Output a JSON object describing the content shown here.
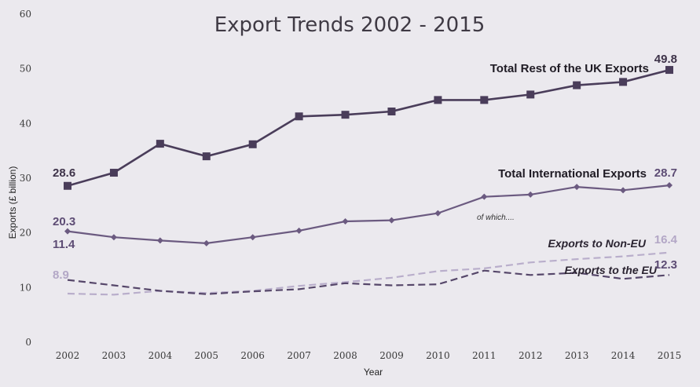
{
  "chart_data": {
    "type": "line",
    "title": "Export Trends 2002 - 2015",
    "xlabel": "Year",
    "ylabel": "Exports (£ billion)",
    "ylim": [
      0,
      60
    ],
    "yticks": [
      0,
      10,
      20,
      30,
      40,
      50,
      60
    ],
    "x": [
      "2002",
      "2003",
      "2004",
      "2005",
      "2006",
      "2007",
      "2008",
      "2009",
      "2010",
      "2011",
      "2012",
      "2013",
      "2014",
      "2015"
    ],
    "grid": false,
    "note": "of which....",
    "series": [
      {
        "name": "Total Rest of the UK Exports",
        "style": "solid-square-markers",
        "color": "#4a3d5a",
        "values": [
          28.6,
          31.0,
          36.3,
          34.0,
          36.2,
          41.3,
          41.6,
          42.2,
          44.3,
          44.3,
          45.3,
          47.0,
          47.6,
          49.8
        ],
        "start_label": "28.6",
        "end_label": "49.8"
      },
      {
        "name": "Total International Exports",
        "style": "solid-diamond-markers",
        "color": "#6b5a80",
        "values": [
          20.3,
          19.2,
          18.6,
          18.1,
          19.2,
          20.4,
          22.1,
          22.3,
          23.6,
          26.6,
          27.0,
          28.4,
          27.8,
          28.7
        ],
        "start_label": "20.3",
        "end_label": "28.7"
      },
      {
        "name": "Exports to Non-EU",
        "style": "dashed-light",
        "color": "#b9aecb",
        "values": [
          8.9,
          8.7,
          9.4,
          9.0,
          9.4,
          10.3,
          11.0,
          11.8,
          13.0,
          13.5,
          14.6,
          15.2,
          15.7,
          16.4
        ],
        "start_label": "8.9",
        "end_label": "16.4"
      },
      {
        "name": "Exports to the EU",
        "style": "dashed-dark",
        "color": "#56476a",
        "values": [
          11.4,
          10.4,
          9.4,
          8.8,
          9.3,
          9.7,
          10.8,
          10.4,
          10.6,
          13.1,
          12.3,
          12.7,
          11.6,
          12.3
        ],
        "start_label": "11.4",
        "end_label": "12.3"
      }
    ]
  }
}
